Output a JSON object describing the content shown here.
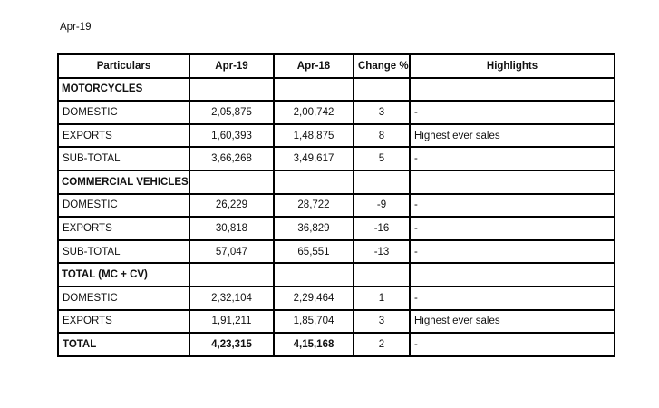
{
  "page": {
    "period_label": "Apr-19"
  },
  "table": {
    "columns": [
      "Particulars",
      "Apr-19",
      "Apr-18",
      "Change %",
      "Highlights"
    ],
    "rows": [
      {
        "type": "section",
        "particulars": "MOTORCYCLES",
        "apr19": "",
        "apr18": "",
        "change": "",
        "highlights": ""
      },
      {
        "type": "data",
        "particulars": "DOMESTIC",
        "apr19": "2,05,875",
        "apr18": "2,00,742",
        "change": "3",
        "highlights": "-"
      },
      {
        "type": "data",
        "particulars": "EXPORTS",
        "apr19": "1,60,393",
        "apr18": "1,48,875",
        "change": "8",
        "highlights": "Highest ever sales"
      },
      {
        "type": "data",
        "particulars": "SUB-TOTAL",
        "apr19": "3,66,268",
        "apr18": "3,49,617",
        "change": "5",
        "highlights": "-"
      },
      {
        "type": "section",
        "particulars": "COMMERCIAL VEHICLES",
        "apr19": "",
        "apr18": "",
        "change": "",
        "highlights": ""
      },
      {
        "type": "data",
        "particulars": "DOMESTIC",
        "apr19": "26,229",
        "apr18": "28,722",
        "change": "-9",
        "highlights": "-"
      },
      {
        "type": "data",
        "particulars": "EXPORTS",
        "apr19": "30,818",
        "apr18": "36,829",
        "change": "-16",
        "highlights": "-"
      },
      {
        "type": "data",
        "particulars": "SUB-TOTAL",
        "apr19": "57,047",
        "apr18": "65,551",
        "change": "-13",
        "highlights": "-"
      },
      {
        "type": "section",
        "particulars": "TOTAL (MC + CV)",
        "apr19": "",
        "apr18": "",
        "change": "",
        "highlights": ""
      },
      {
        "type": "data",
        "particulars": "DOMESTIC",
        "apr19": "2,32,104",
        "apr18": "2,29,464",
        "change": "1",
        "highlights": "-"
      },
      {
        "type": "data",
        "particulars": "EXPORTS",
        "apr19": "1,91,211",
        "apr18": "1,85,704",
        "change": "3",
        "highlights": "Highest ever sales"
      },
      {
        "type": "total",
        "particulars": "TOTAL",
        "apr19": "4,23,315",
        "apr18": "4,15,168",
        "change": "2",
        "highlights": "-"
      }
    ]
  }
}
